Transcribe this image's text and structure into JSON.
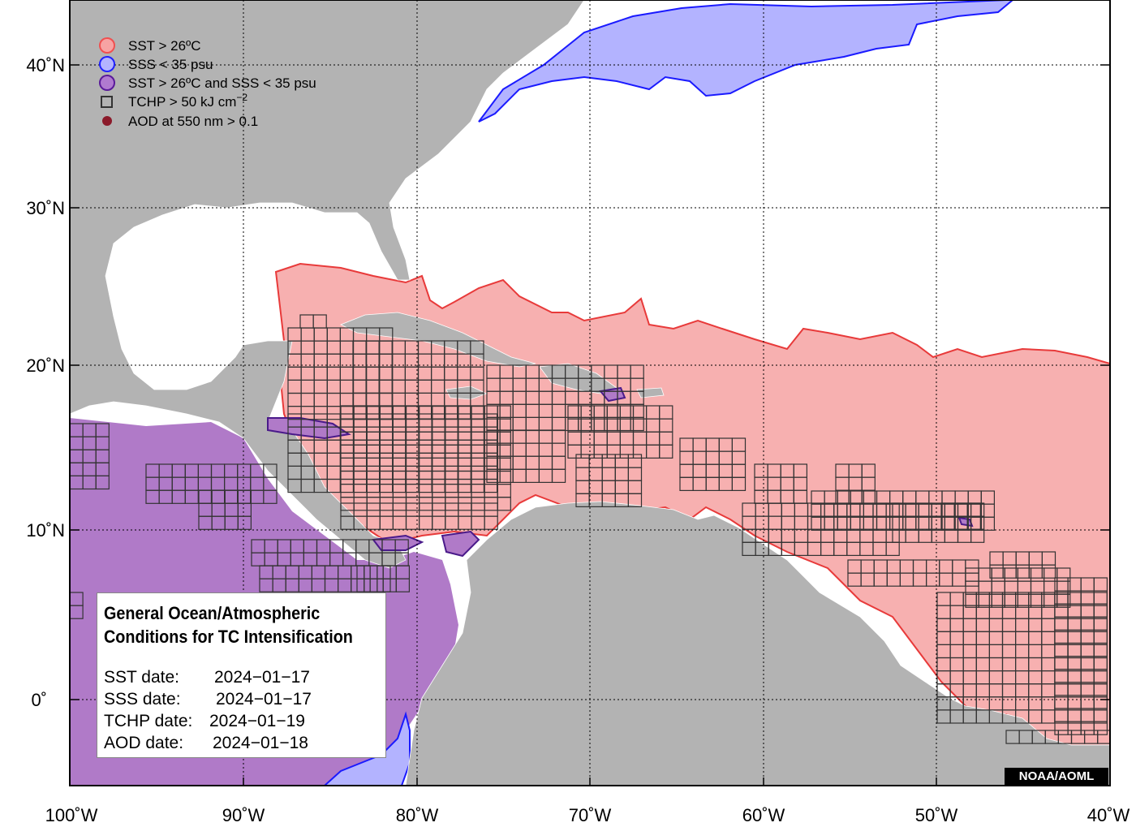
{
  "map": {
    "legend": {
      "items": [
        {
          "label": "SST > 26ºC",
          "fill": "#f7a3a3",
          "stroke": "#f05050",
          "kind": "circle"
        },
        {
          "label": "SSS < 35 psu",
          "fill": "#b3b3ff",
          "stroke": "#2020ff",
          "kind": "circle"
        },
        {
          "label": "SST > 26ºC and SSS < 35 psu",
          "fill": "#b07ad0",
          "stroke": "#5a1a9a",
          "kind": "circle"
        },
        {
          "label": "TCHP > 50 kJ cm",
          "superscript": "−2",
          "kind": "square"
        },
        {
          "label": "AOD at 550 nm > 0.1",
          "fill": "#8b1a2a",
          "kind": "dot"
        }
      ]
    },
    "lat_ticks": [
      "40˚N",
      "30˚N",
      "20˚N",
      "10˚N",
      "0˚"
    ],
    "lon_ticks": [
      "100˚W",
      "90˚W",
      "80˚W",
      "70˚W",
      "60˚W",
      "50˚W",
      "40˚W"
    ],
    "colors": {
      "land": "#b3b3b3",
      "ocean": "#ffffff",
      "sst": "#f7b0b0",
      "sst_edge": "#e83a3a",
      "sss": "#b3b3ff",
      "sss_edge": "#1a1aff",
      "both": "#b07ac8",
      "both_edge": "#4a1a8a",
      "grid_box": "#333333"
    }
  },
  "info_box": {
    "title_line1": "General Ocean/Atmospheric",
    "title_line2": "Conditions for TC Intensification",
    "rows": [
      {
        "label": "SST date:",
        "value": "2024−01−17"
      },
      {
        "label": "SSS date:",
        "value": "2024−01−17"
      },
      {
        "label": "TCHP date:",
        "value": "2024−01−19"
      },
      {
        "label": "AOD date:",
        "value": "2024−01−18"
      }
    ]
  },
  "credit": "NOAA/AOML"
}
